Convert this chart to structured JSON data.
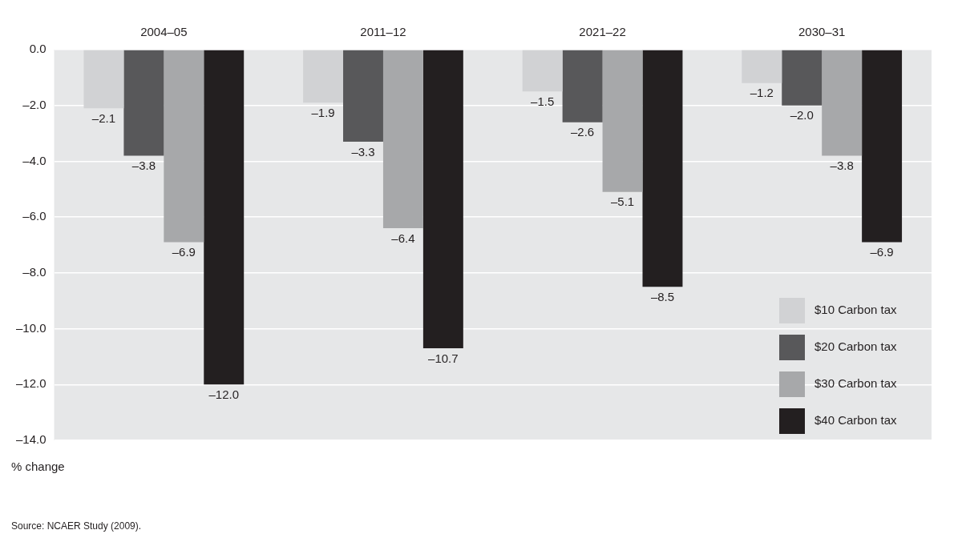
{
  "chart_data": {
    "type": "bar",
    "ylabel": "% change",
    "categories": [
      "2004–05",
      "2011–12",
      "2021–22",
      "2030–31"
    ],
    "series": [
      {
        "name": "$10 Carbon tax",
        "color": "#d1d2d4",
        "values": [
          -2.1,
          -1.9,
          -1.5,
          -1.2
        ],
        "value_labels": [
          "–2.1",
          "–1.9",
          "–1.5",
          "–1.2"
        ]
      },
      {
        "name": "$20 Carbon tax",
        "color": "#58585a",
        "values": [
          -3.8,
          -3.3,
          -2.6,
          -2.0
        ],
        "value_labels": [
          "–3.8",
          "–3.3",
          "–2.6",
          "–2.0"
        ]
      },
      {
        "name": "$30 Carbon tax",
        "color": "#a7a8aa",
        "values": [
          -6.9,
          -6.4,
          -5.1,
          -3.8
        ],
        "value_labels": [
          "–6.9",
          "–6.4",
          "–5.1",
          "–3.8"
        ]
      },
      {
        "name": "$40 Carbon tax",
        "color": "#231f20",
        "values": [
          -12.0,
          -10.7,
          -8.5,
          -6.9
        ],
        "value_labels": [
          "–12.0",
          "–10.7",
          "–8.5",
          "–6.9"
        ]
      }
    ],
    "ylim": [
      -14,
      0
    ],
    "yticks": [
      {
        "value": 0,
        "label": "0.0"
      },
      {
        "value": -2,
        "label": "–2.0"
      },
      {
        "value": -4,
        "label": "–4.0"
      },
      {
        "value": -6,
        "label": "–6.0"
      },
      {
        "value": -8,
        "label": "–8.0"
      },
      {
        "value": -10,
        "label": "–10.0"
      },
      {
        "value": -12,
        "label": "–12.0"
      },
      {
        "value": -14,
        "label": "–14.0"
      }
    ],
    "grid": "y",
    "legend": "bottom right",
    "annotations": [
      "Source: NCAER Study (2009)."
    ]
  }
}
